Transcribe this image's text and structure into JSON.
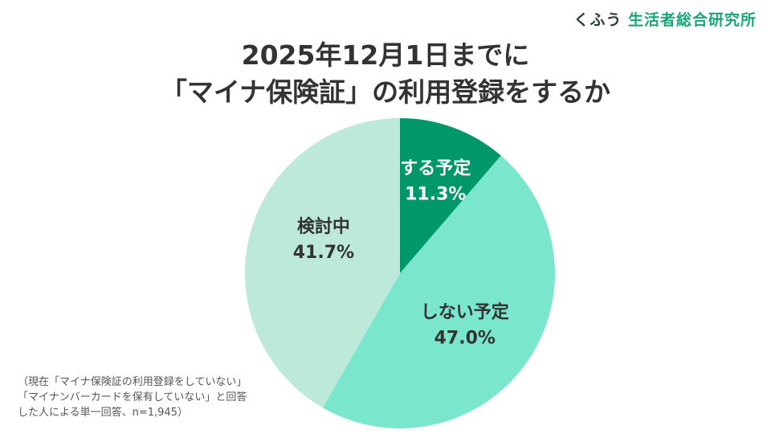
{
  "brand": {
    "prefix": "くふう",
    "name": "生活者総合研究所"
  },
  "title": {
    "line1": "2025年12月1日までに",
    "line2": "「マイナ保険証」の利用登録をするか"
  },
  "chart_data": {
    "type": "pie",
    "slices": [
      {
        "label": "する予定",
        "value": 11.3,
        "value_label": "11.3%",
        "color": "#00976b",
        "text_color": "#ffffff"
      },
      {
        "label": "しない予定",
        "value": 47.0,
        "value_label": "47.0%",
        "color": "#7ae6cc",
        "text_color": "#333333"
      },
      {
        "label": "検討中",
        "value": 41.7,
        "value_label": "41.7%",
        "color": "#bde9db",
        "text_color": "#333333"
      }
    ],
    "start": "12 o'clock",
    "direction": "clockwise",
    "legend": "none",
    "data_labels": "inside"
  },
  "note": {
    "line1": "（現在「マイナ保険証の利用登録をしていない」",
    "line2": "「マイナンバーカードを保有していない」と回答",
    "line3": "した人による単一回答、n=1,945）"
  }
}
